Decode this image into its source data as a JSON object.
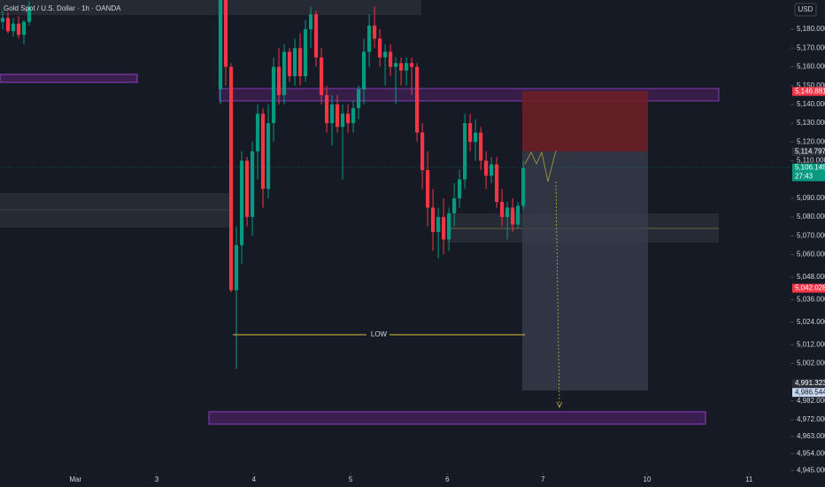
{
  "chart_data": {
    "type": "candlestick",
    "title": "Gold Spot / U.S. Dollar · 1h · OANDA",
    "currency": "USD",
    "up_color": "#089981",
    "down_color": "#f23645",
    "grid": false,
    "annotations": [
      {
        "text": "LOW",
        "value": 5012.8
      }
    ],
    "candles": {
      "x": [
        0,
        1,
        2,
        3,
        4,
        5,
        41,
        42,
        43,
        44,
        45,
        46,
        47,
        48,
        49,
        50,
        51,
        52,
        53,
        54,
        55,
        56,
        57,
        58,
        59,
        60,
        61,
        62,
        63,
        64,
        65,
        66,
        67,
        68,
        69,
        70,
        71,
        72,
        73,
        74,
        75,
        76,
        77,
        78,
        79,
        80,
        81,
        82,
        83,
        84,
        85,
        86,
        87,
        88,
        89,
        90,
        91,
        92,
        93,
        94,
        95,
        96,
        97,
        98
      ],
      "open": [
        5184,
        5186,
        5179,
        5183,
        5177,
        5184,
        5148,
        5198,
        5160,
        5041,
        5065,
        5110,
        5080,
        5115,
        5135,
        5095,
        5130,
        5160,
        5145,
        5168,
        5155,
        5170,
        5155,
        5180,
        5188,
        5165,
        5145,
        5130,
        5140,
        5128,
        5135,
        5130,
        5138,
        5148,
        5168,
        5182,
        5175,
        5165,
        5168,
        5160,
        5162,
        5158,
        5162,
        5160,
        5125,
        5105,
        5085,
        5072,
        5080,
        5068,
        5082,
        5090,
        5100,
        5130,
        5120,
        5125,
        5110,
        5102,
        5108,
        5088,
        5080,
        5085,
        5076,
        5086
      ],
      "high": [
        5190,
        5189,
        5186,
        5187,
        5185,
        5195,
        5200,
        5200,
        5162,
        5075,
        5115,
        5112,
        5120,
        5140,
        5138,
        5140,
        5165,
        5170,
        5172,
        5170,
        5175,
        5178,
        5185,
        5192,
        5190,
        5170,
        5150,
        5145,
        5145,
        5140,
        5140,
        5142,
        5150,
        5175,
        5188,
        5192,
        5180,
        5172,
        5172,
        5165,
        5165,
        5165,
        5165,
        5162,
        5130,
        5115,
        5095,
        5085,
        5090,
        5085,
        5098,
        5105,
        5135,
        5135,
        5132,
        5128,
        5115,
        5112,
        5112,
        5095,
        5088,
        5090,
        5088,
        5110
      ],
      "low": [
        5180,
        5178,
        5176,
        5175,
        5172,
        5182,
        5140,
        5150,
        5040,
        4999,
        5055,
        5075,
        5070,
        5100,
        5085,
        5090,
        5120,
        5140,
        5140,
        5152,
        5150,
        5150,
        5152,
        5170,
        5160,
        5140,
        5125,
        5118,
        5125,
        5100,
        5125,
        5125,
        5132,
        5140,
        5160,
        5170,
        5160,
        5150,
        5155,
        5140,
        5150,
        5150,
        5145,
        5120,
        5095,
        5075,
        5062,
        5058,
        5060,
        5062,
        5075,
        5085,
        5095,
        5115,
        5110,
        5105,
        5095,
        5098,
        5085,
        5075,
        5068,
        5072,
        5074,
        5084
      ],
      "close": [
        5186,
        5179,
        5183,
        5177,
        5184,
        5192,
        5198,
        5160,
        5041,
        5065,
        5110,
        5080,
        5115,
        5135,
        5095,
        5130,
        5160,
        5145,
        5168,
        5155,
        5170,
        5155,
        5180,
        5188,
        5165,
        5145,
        5130,
        5140,
        5128,
        5135,
        5130,
        5138,
        5148,
        5168,
        5182,
        5175,
        5165,
        5168,
        5160,
        5162,
        5158,
        5162,
        5160,
        5125,
        5105,
        5085,
        5072,
        5080,
        5068,
        5082,
        5090,
        5100,
        5130,
        5120,
        5125,
        5110,
        5102,
        5108,
        5088,
        5080,
        5085,
        5076,
        5086,
        5106
      ]
    },
    "xlim": [
      -0.5,
      148.3
    ],
    "xticks": [
      {
        "value": 13.7,
        "label": "Mar"
      },
      {
        "value": 29,
        "label": "3"
      },
      {
        "value": 47.3,
        "label": "4"
      },
      {
        "value": 65.5,
        "label": "5"
      },
      {
        "value": 83.7,
        "label": "6"
      },
      {
        "value": 101.7,
        "label": "7"
      },
      {
        "value": 121.3,
        "label": "10"
      },
      {
        "value": 140.5,
        "label": "11"
      }
    ],
    "ylim": [
      4937.1,
      5195.6
    ],
    "yticks": [
      {
        "value": 5180,
        "label": "5,180.000"
      },
      {
        "value": 5170,
        "label": "5,170.000"
      },
      {
        "value": 5160,
        "label": "5,160.000"
      },
      {
        "value": 5150,
        "label": "5,150.000"
      },
      {
        "value": 5140,
        "label": "5,140.000"
      },
      {
        "value": 5130,
        "label": "5,130.000"
      },
      {
        "value": 5120,
        "label": "5,120.000"
      },
      {
        "value": 5110,
        "label": "5,110.000"
      },
      {
        "value": 5090,
        "label": "5,090.000"
      },
      {
        "value": 5080,
        "label": "5,080.000"
      },
      {
        "value": 5070,
        "label": "5,070.000"
      },
      {
        "value": 5060,
        "label": "5,060.000"
      },
      {
        "value": 5048,
        "label": "5,048.000"
      },
      {
        "value": 5036,
        "label": "5,036.000"
      },
      {
        "value": 5024,
        "label": "5,024.000"
      },
      {
        "value": 5012,
        "label": "5,012.000"
      },
      {
        "value": 5002,
        "label": "5,002.000"
      },
      {
        "value": 4982,
        "label": "4,982.000"
      },
      {
        "value": 4972,
        "label": "4,972.000"
      },
      {
        "value": 4963,
        "label": "4,963.000"
      },
      {
        "value": 4954,
        "label": "4,954.000"
      },
      {
        "value": 4945,
        "label": "4,945.000"
      }
    ],
    "price_tags": [
      {
        "value": 5146.881,
        "label": "5,146.881",
        "color": "#f23645"
      },
      {
        "value": 5114.797,
        "label": "5,114.797",
        "color": "#2a2e39"
      },
      {
        "value": 5106.145,
        "label": "5,106.145",
        "color": "#089981",
        "countdown": "27:43"
      },
      {
        "value": 5042.028,
        "label": "5,042.028",
        "color": "#f23645"
      },
      {
        "value": 4991.323,
        "label": "4,991.323",
        "color": "#2a2e39"
      },
      {
        "value": 4986.544,
        "label": "4,986.544",
        "color": "#c9d9ef"
      }
    ]
  }
}
